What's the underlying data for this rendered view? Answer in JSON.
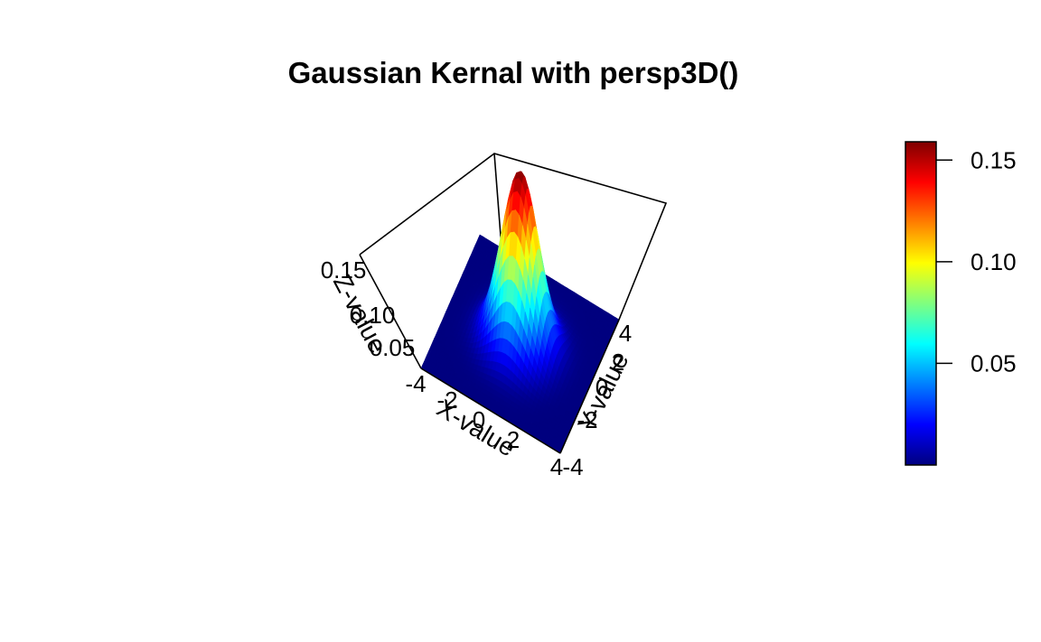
{
  "chart_data": {
    "type": "surface3d",
    "title": "Gaussian Kernal with persp3D()",
    "function": "z = 1/(2*pi) * exp(-(x^2 + y^2)/2)",
    "x": {
      "label": "X-value",
      "range": [
        -4,
        4
      ],
      "ticks": [
        "-4",
        "-2",
        "0",
        "2",
        "4"
      ]
    },
    "y": {
      "label": "Y-value",
      "range": [
        -4,
        4
      ],
      "ticks": [
        "-4",
        "-2",
        "0",
        "2",
        "4"
      ]
    },
    "z": {
      "label": "Z-value",
      "range": [
        0,
        0.159
      ],
      "ticks": [
        "0.05",
        "0.10",
        "0.15"
      ]
    },
    "colorbar": {
      "range": [
        0,
        0.159
      ],
      "ticks": [
        "0.05",
        "0.10",
        "0.15"
      ],
      "tick_values": [
        0.05,
        0.1,
        0.15
      ],
      "palette": "jet",
      "colors": [
        "#00007F",
        "#0000FF",
        "#007FFF",
        "#00FFFF",
        "#7FFF7F",
        "#FFFF00",
        "#FF7F00",
        "#FF0000",
        "#7F0000"
      ]
    },
    "grid": false,
    "legend": "colorbar-right"
  }
}
